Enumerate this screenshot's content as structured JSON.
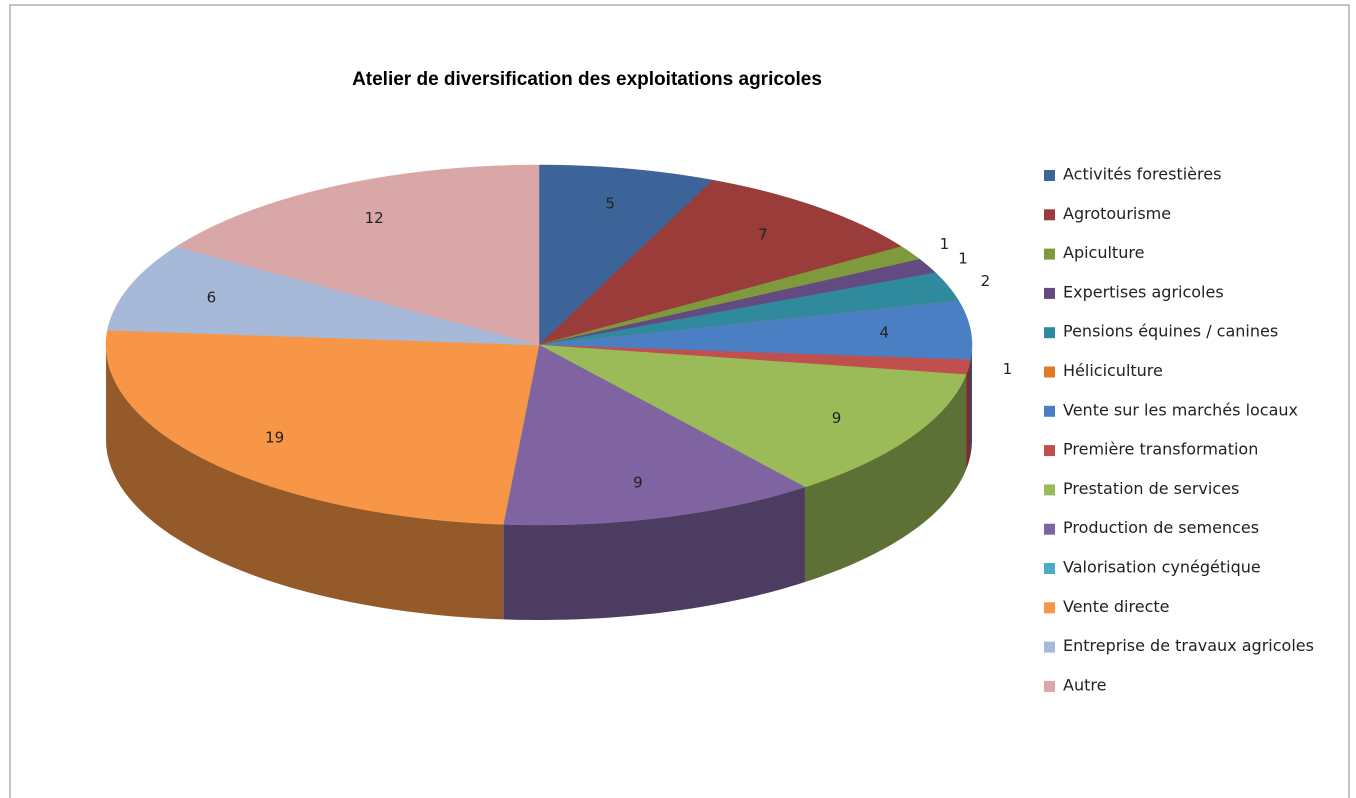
{
  "chart_data": {
    "type": "pie",
    "title": "Atelier de diversification des exploitations agricoles",
    "categories": [
      "Activités forestières",
      "Agrotourisme",
      "Apiculture",
      "Expertises agricoles",
      "Pensions équines / canines",
      "Héliciculture",
      "Vente sur les marchés locaux",
      "Première transformation",
      "Prestation de services",
      "Production de semences",
      "Valorisation cynégétique",
      "Vente directe",
      "Entreprise de travaux agricoles",
      "Autre"
    ],
    "values": [
      5,
      7,
      1,
      1,
      2,
      0,
      4,
      1,
      9,
      9,
      0,
      19,
      6,
      12
    ],
    "colors": [
      "#3c6499",
      "#993c3a",
      "#7e9a3c",
      "#634a80",
      "#2e8a9c",
      "#e07a2a",
      "#4a7fc4",
      "#c0504d",
      "#9bbb59",
      "#8064a2",
      "#4bacc6",
      "#f79646",
      "#a7b9d8",
      "#d9a7a7"
    ],
    "legend": "right"
  }
}
